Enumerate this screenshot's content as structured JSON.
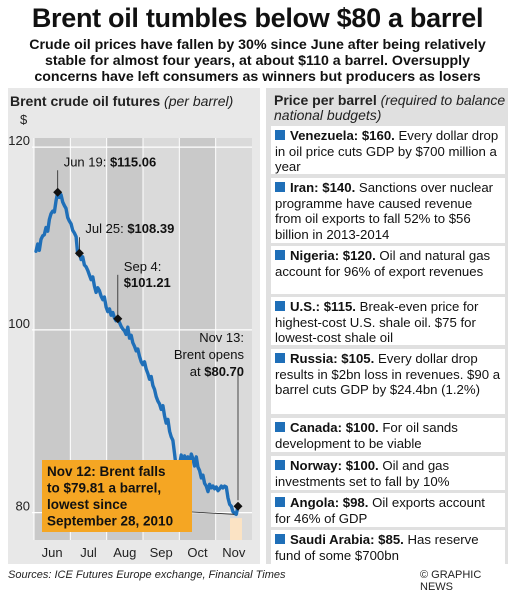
{
  "title": "Brent oil tumbles below $80 a barrel",
  "subtitle": "Crude oil prices have fallen by 30% since June after being relatively stable for almost four years, at about $110 a barrel. Oversupply concerns have left consumers as winners but producers as losers",
  "chart_data": {
    "type": "line",
    "title": "Brent crude oil futures",
    "title_unit": "(per barrel)",
    "ylabel": "$",
    "yticks": [
      120,
      100,
      80
    ],
    "ylim": [
      77,
      121
    ],
    "x_month_labels": [
      "Jun",
      "Jul",
      "Aug",
      "Sep",
      "Oct",
      "Nov"
    ],
    "grid": "vertical month bands",
    "series": [
      {
        "values": [
          108.6,
          109.4,
          108.7,
          109.9,
          110.3,
          110.4,
          111.2,
          110.8,
          112.1,
          112.7,
          113.0,
          112.9,
          114.1,
          115.06,
          114.5,
          114.8,
          114.0,
          113.6,
          113.3,
          112.3,
          111.9,
          111.6,
          110.9,
          110.6,
          110.2,
          108.3,
          108.39,
          107.7,
          108.0,
          107.1,
          106.9,
          106.5,
          106.0,
          105.5,
          105.8,
          104.8,
          104.1,
          104.6,
          104.3,
          103.7,
          103.3,
          103.6,
          102.5,
          102.0,
          102.3,
          101.6,
          101.9,
          101.3,
          101.0,
          101.21,
          100.8,
          100.4,
          100.1,
          99.9,
          99.5,
          100.3,
          99.1,
          99.4,
          98.6,
          98.2,
          97.7,
          97.9,
          97.1,
          96.5,
          96.2,
          96.5,
          95.7,
          95.2,
          94.6,
          94.9,
          93.9,
          93.5,
          92.7,
          92.2,
          91.9,
          91.3,
          91.7,
          90.6,
          89.8,
          90.2,
          88.9,
          88.3,
          87.9,
          86.4,
          84.9,
          84.2,
          85.2,
          86.3,
          85.5,
          86.2,
          85.7,
          86.1,
          85.3,
          86.4,
          85.9,
          85.1,
          86.1,
          85.0,
          84.6,
          83.8,
          84.1,
          83.2,
          82.9,
          82.3,
          83.1,
          82.7,
          82.9,
          82.6,
          82.8,
          82.4,
          82.6,
          82.9,
          82.7,
          82.9,
          82.8,
          81.6,
          80.9,
          80.7,
          80.1,
          79.9,
          79.81,
          80.7
        ]
      }
    ],
    "annotations": [
      {
        "date": "Jun 19:",
        "value_label": "$115.06",
        "value": 115.06
      },
      {
        "date": "Jul 25:",
        "value_label": "$108.39",
        "value": 108.39
      },
      {
        "date": "Sep 4:",
        "value_label": "$101.21",
        "value": 101.21
      },
      {
        "date": "Nov 13:",
        "value_label": "Brent opens at $80.70",
        "value": 80.7
      }
    ],
    "callout": {
      "lines": [
        "Nov 12: Brent falls",
        "to $79.81 a barrel,",
        "lowest since",
        "September 28, 2010"
      ],
      "value": 79.81,
      "color": "#f5a623"
    },
    "line_color": "#1f6fb8",
    "marker_color": "#111111"
  },
  "right_panel": {
    "heading": "Price per barrel",
    "heading_note": "(required to balance national budgets)",
    "accent_color": "#1f6fb8",
    "entries": [
      {
        "name": "Venezuela: $160.",
        "text": " Every dollar drop in oil price cuts GDP by $700 million a year"
      },
      {
        "name": "Iran: $140.",
        "text": " Sanctions over nuclear programme have caused revenue from oil exports to fall 52% to $56 billion in 2013-2014"
      },
      {
        "name": "Nigeria: $120.",
        "text": " Oil and natural gas account for 96% of export revenues"
      },
      {
        "name": "U.S.: $115.",
        "text": " Break-even price for highest-cost U.S. shale oil. $75 for lowest-cost shale oil"
      },
      {
        "name": "Russia: $105.",
        "text": " Every dollar drop results in $2bn loss in revenues. $90 a barrel cuts GDP by $24.4bn (1.2%)"
      },
      {
        "name": "Canada: $100.",
        "text": " For oil sands development to be viable"
      },
      {
        "name": "Norway: $100.",
        "text": " Oil and gas investments set to fall by 10%"
      },
      {
        "name": "Angola: $98.",
        "text": " Oil exports account for 46% of GDP"
      },
      {
        "name": "Saudi Arabia: $85.",
        "text": " Has reserve fund of some $700bn"
      }
    ]
  },
  "footer": {
    "sources": "Sources: ICE Futures Europe exchange, Financial Times",
    "credit": "© GRAPHIC NEWS"
  }
}
